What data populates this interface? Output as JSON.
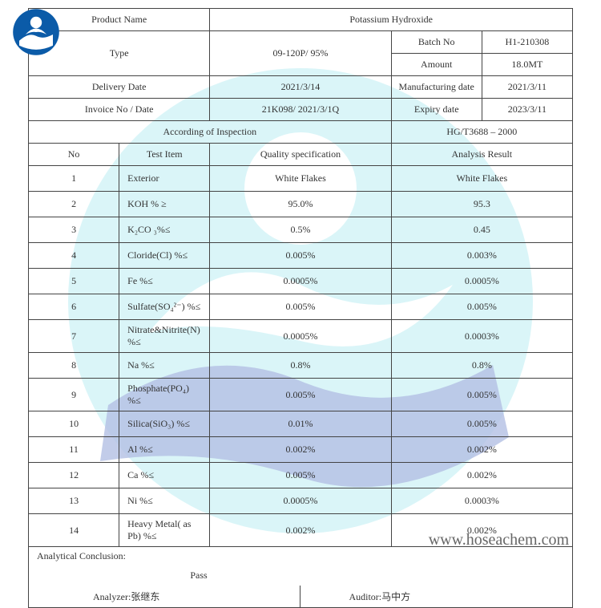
{
  "header": {
    "product_name_label": "Product Name",
    "product_name": "Potassium Hydroxide",
    "type_label": "Type",
    "type_value": "09-120P/ 95%",
    "batch_no_label": "Batch No",
    "batch_no": "H1-210308",
    "amount_label": "Amount",
    "amount": "18.0MT",
    "delivery_date_label": "Delivery Date",
    "delivery_date": "2021/3/14",
    "mfg_date_label": "Manufacturing date",
    "mfg_date": "2021/3/11",
    "invoice_label": "Invoice No / Date",
    "invoice_value": "21K098/ 2021/3/1Q",
    "expiry_label": "Expiry date",
    "expiry_date": "2023/3/11",
    "inspection_label": "According of Inspection",
    "inspection_std": "HG/T3688 – 2000"
  },
  "columns": {
    "no": "No",
    "test_item": "Test Item",
    "spec": "Quality specification",
    "result": "Analysis Result"
  },
  "rows": [
    {
      "no": "1",
      "item": "Exterior",
      "spec": "White Flakes",
      "result": "White Flakes"
    },
    {
      "no": "2",
      "item": "KOH % ≥",
      "spec": "95.0%",
      "result": "95.3"
    },
    {
      "no": "3",
      "item": "K₂CO ₃%≤",
      "spec": "0.5%",
      "result": "0.45"
    },
    {
      "no": "4",
      "item": "Cloride(Cl) %≤",
      "spec": "0.005%",
      "result": "0.003%"
    },
    {
      "no": "5",
      "item": "Fe %≤",
      "spec": "0.0005%",
      "result": "0.0005%"
    },
    {
      "no": "6",
      "item": "Sulfate(SO₄²⁻) %≤",
      "spec": "0.005%",
      "result": "0.005%"
    },
    {
      "no": "7",
      "item": "Nitrate&Nitrite(N) %≤",
      "spec": "0.0005%",
      "result": "0.0003%"
    },
    {
      "no": "8",
      "item": "Na %≤",
      "spec": "0.8%",
      "result": "0.8%"
    },
    {
      "no": "9",
      "item": "Phosphate(PO₄) %≤",
      "spec": "0.005%",
      "result": "0.005%"
    },
    {
      "no": "10",
      "item": "Silica(SiO₃) %≤",
      "spec": "0.01%",
      "result": "0.005%"
    },
    {
      "no": "11",
      "item": "Al %≤",
      "spec": "0.002%",
      "result": "0.002%"
    },
    {
      "no": "12",
      "item": "Ca %≤",
      "spec": "0.005%",
      "result": "0.002%"
    },
    {
      "no": "13",
      "item": "Ni %≤",
      "spec": "0.0005%",
      "result": "0.0003%"
    },
    {
      "no": "14",
      "item": "Heavy Metal( as Pb) %≤",
      "spec": "0.002%",
      "result": "0.002%"
    }
  ],
  "footer": {
    "conclusion_label": "Analytical Conclusion:",
    "conclusion": "Pass",
    "analyzer_label": "Analyzer:",
    "analyzer_name": "张继东",
    "auditor_label": "Auditor:",
    "auditor_name": "马中方"
  },
  "watermark_url": "www.hoseachem.com",
  "colors": {
    "logo_cyan": "#6fd8e8",
    "logo_blue": "#6b7fc4",
    "border": "#444444",
    "text": "#333333"
  }
}
